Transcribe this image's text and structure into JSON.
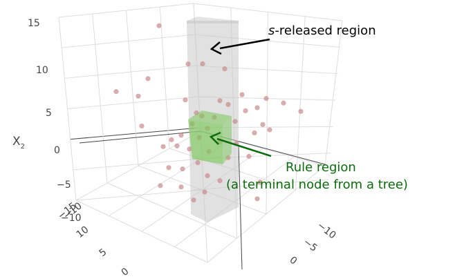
{
  "chart_data": {
    "type": "scatter",
    "dimensions": "3d",
    "title": "",
    "axes": {
      "x2": {
        "label": "X",
        "label_subscript": "2",
        "ticks": [
          "15",
          "10",
          "5",
          "0",
          "−5",
          "−10"
        ]
      },
      "x1": {
        "ticks": [
          "−10",
          "−5",
          "0"
        ]
      },
      "x3": {
        "ticks": [
          "−10",
          "−15",
          "10",
          "5",
          "0"
        ]
      }
    },
    "grid": true,
    "points_color": "#c98a8a",
    "regions": [
      {
        "name": "s-released region",
        "color": "#c8c8c8",
        "label_italic": "s",
        "label_rest": "-released region",
        "label_color": "#000000"
      },
      {
        "name": "Rule region",
        "color": "#7cc85a",
        "label_line1": "Rule region",
        "label_line2": "(a terminal node from a tree)",
        "label_color": "#0a6b0a"
      }
    ],
    "points_x2": [
      13.5,
      9.5,
      9.8,
      8.7,
      7.9,
      6.4,
      6.2,
      6.0,
      5.8,
      5.5,
      5.3,
      5.1,
      4.9,
      4.5,
      4.3,
      4.2,
      4.0,
      3.8,
      3.6,
      3.1,
      2.9,
      2.7,
      2.4,
      2.2,
      2.0,
      1.8,
      1.5,
      1.3,
      1.0,
      0.8,
      0.6,
      0.4,
      0.1,
      -0.1,
      -0.4,
      -0.8,
      -1.2,
      -1.6,
      -2.0,
      -2.4,
      -3.0,
      -3.4,
      -3.8,
      -4.2,
      -4.6,
      -5.0,
      -5.6,
      -6.0
    ]
  }
}
